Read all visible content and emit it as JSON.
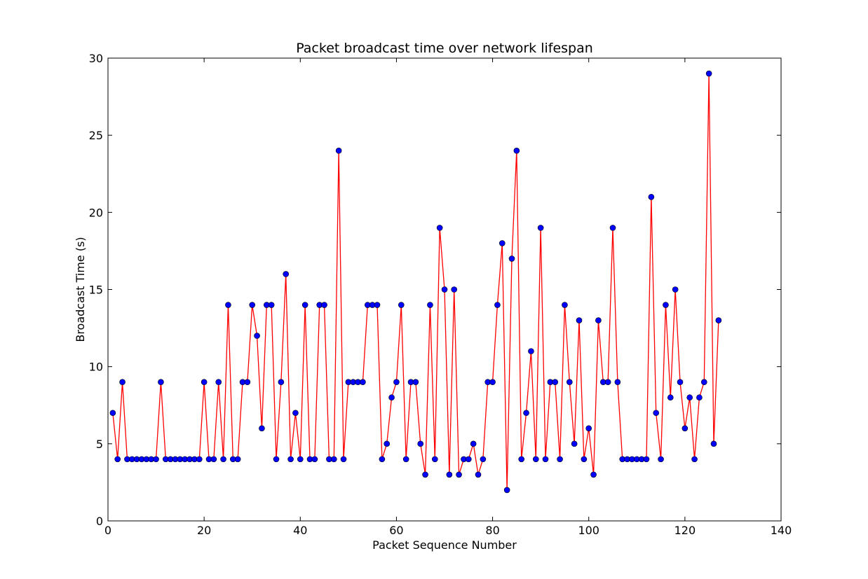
{
  "chart_data": {
    "type": "line",
    "title": "Packet broadcast time over network lifespan",
    "xlabel": "Packet Sequence Number",
    "ylabel": "Broadcast Time (s)",
    "xlim": [
      0,
      140
    ],
    "ylim": [
      0,
      30
    ],
    "xticks": [
      "0",
      "20",
      "40",
      "60",
      "80",
      "100",
      "120",
      "140"
    ],
    "yticks": [
      "0",
      "5",
      "10",
      "15",
      "20",
      "25",
      "30"
    ],
    "grid": false,
    "legend": "none",
    "line_color": "#ff0000",
    "marker_color": "#0000ff",
    "series": [
      {
        "x": [
          1,
          2,
          3,
          4,
          5,
          6,
          7,
          8,
          9,
          10,
          11,
          12,
          13,
          14,
          15,
          16,
          17,
          18,
          19,
          20,
          21,
          22,
          23,
          24,
          25,
          26,
          27,
          28,
          29,
          30,
          31,
          32,
          33,
          34,
          35,
          36,
          37,
          38,
          39,
          40,
          41,
          42,
          43,
          44,
          45,
          46,
          47,
          48,
          49,
          50,
          51,
          52,
          53,
          54,
          55,
          56,
          57,
          58,
          59,
          60,
          61,
          62,
          63,
          64,
          65,
          66,
          67,
          68,
          69,
          70,
          71,
          72,
          73,
          74,
          75,
          76,
          77,
          78,
          79,
          80,
          81,
          82,
          83,
          84,
          85,
          86,
          87,
          88,
          89,
          90,
          91,
          92,
          93,
          94,
          95,
          96,
          97,
          98,
          99,
          100,
          101,
          102,
          103,
          104,
          105,
          106,
          107,
          108,
          109,
          110,
          111,
          112,
          113,
          114,
          115,
          116,
          117,
          118,
          119,
          120,
          121,
          122,
          123,
          124,
          125,
          126,
          127
        ],
        "y": [
          7,
          4,
          9,
          4,
          4,
          4,
          4,
          4,
          4,
          4,
          9,
          4,
          4,
          4,
          4,
          4,
          4,
          4,
          4,
          9,
          4,
          4,
          9,
          4,
          14,
          4,
          4,
          9,
          9,
          14,
          12,
          6,
          14,
          14,
          4,
          9,
          16,
          4,
          7,
          4,
          14,
          4,
          4,
          14,
          14,
          4,
          4,
          24,
          4,
          9,
          9,
          9,
          9,
          14,
          14,
          14,
          4,
          5,
          8,
          9,
          14,
          4,
          9,
          9,
          5,
          3,
          14,
          4,
          19,
          15,
          3,
          15,
          3,
          4,
          4,
          5,
          3,
          4,
          9,
          9,
          14,
          18,
          2,
          17,
          24,
          4,
          7,
          11,
          4,
          19,
          4,
          9,
          9,
          4,
          14,
          9,
          5,
          13,
          4,
          6,
          3,
          13,
          9,
          9,
          19,
          9,
          4,
          4,
          4,
          4,
          4,
          4,
          21,
          7,
          4,
          14,
          8,
          15,
          9,
          6,
          8,
          4,
          8,
          9,
          29,
          5,
          13
        ]
      }
    ]
  }
}
